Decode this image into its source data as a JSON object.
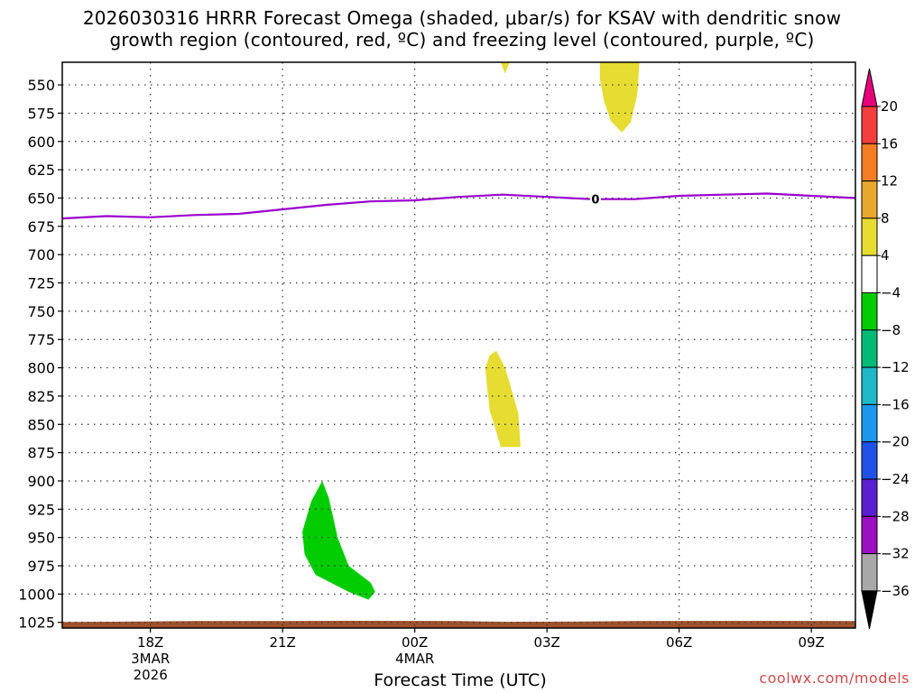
{
  "title": {
    "line1": "2026030316 HRRR Forecast Omega (shaded, μbar/s) for KSAV with dendritic snow",
    "line2": "growth region (contoured, red, ºC) and freezing level (contoured, purple, ºC)"
  },
  "watermark": "coolwx.com/models",
  "chart_data": {
    "type": "contour",
    "station": "KSAV",
    "model": "HRRR",
    "init": "2026030316",
    "xlabel": "Forecast Time (UTC)",
    "ylabel": "",
    "x_range_hours": [
      0,
      18
    ],
    "y_range_mb": [
      1030,
      530
    ],
    "y_reversed": true,
    "grid": true,
    "x_ticks": [
      {
        "hour": 2,
        "label": "18Z",
        "sub1": "3MAR",
        "sub2": "2026"
      },
      {
        "hour": 5,
        "label": "21Z",
        "sub1": "",
        "sub2": ""
      },
      {
        "hour": 8,
        "label": "00Z",
        "sub1": "4MAR",
        "sub2": ""
      },
      {
        "hour": 11,
        "label": "03Z",
        "sub1": "",
        "sub2": ""
      },
      {
        "hour": 14,
        "label": "06Z",
        "sub1": "",
        "sub2": ""
      },
      {
        "hour": 17,
        "label": "09Z",
        "sub1": "",
        "sub2": ""
      }
    ],
    "y_ticks": [
      550,
      575,
      600,
      625,
      650,
      675,
      700,
      725,
      750,
      775,
      800,
      825,
      850,
      875,
      900,
      925,
      950,
      975,
      1000,
      1025
    ],
    "freezing_level": {
      "label": "0",
      "label_hour": 12.1,
      "points": [
        [
          0,
          668
        ],
        [
          1,
          666
        ],
        [
          2,
          667
        ],
        [
          3,
          665
        ],
        [
          4,
          664
        ],
        [
          5,
          660
        ],
        [
          6,
          656
        ],
        [
          7,
          653
        ],
        [
          8,
          652
        ],
        [
          9,
          649
        ],
        [
          10,
          647
        ],
        [
          11,
          649
        ],
        [
          12,
          651
        ],
        [
          13,
          651
        ],
        [
          14,
          648
        ],
        [
          15,
          647
        ],
        [
          16,
          646
        ],
        [
          17,
          648
        ],
        [
          18,
          650
        ]
      ]
    },
    "omega_regions": [
      {
        "name": "ascent-upper-a",
        "color": "#e6dc32",
        "range": "4 to 8",
        "points": [
          [
            9.95,
            530
          ],
          [
            10.05,
            540
          ],
          [
            10.15,
            530
          ]
        ]
      },
      {
        "name": "ascent-upper-b",
        "color": "#e6dc32",
        "range": "4 to 8",
        "points": [
          [
            12.2,
            530
          ],
          [
            12.2,
            545
          ],
          [
            12.3,
            565
          ],
          [
            12.45,
            582
          ],
          [
            12.7,
            592
          ],
          [
            12.9,
            583
          ],
          [
            13.05,
            558
          ],
          [
            13.1,
            530
          ]
        ]
      },
      {
        "name": "ascent-mid",
        "color": "#e6dc32",
        "range": "4 to 8",
        "points": [
          [
            9.6,
            800
          ],
          [
            9.7,
            789
          ],
          [
            9.85,
            785
          ],
          [
            10.05,
            800
          ],
          [
            10.35,
            840
          ],
          [
            10.4,
            870
          ],
          [
            9.95,
            870
          ],
          [
            9.8,
            850
          ],
          [
            9.7,
            838
          ],
          [
            9.65,
            820
          ]
        ]
      },
      {
        "name": "descent-low",
        "color": "#00cc00",
        "range": "-8 to -4",
        "points": [
          [
            5.45,
            945
          ],
          [
            5.65,
            918
          ],
          [
            5.9,
            900
          ],
          [
            6.05,
            915
          ],
          [
            6.25,
            950
          ],
          [
            6.5,
            975
          ],
          [
            7,
            990
          ],
          [
            7.1,
            998
          ],
          [
            6.95,
            1005
          ],
          [
            6.5,
            998
          ],
          [
            5.75,
            983
          ],
          [
            5.5,
            965
          ]
        ]
      }
    ],
    "terrain": {
      "color": "#a0522d",
      "surface_points": [
        [
          0,
          1024.6
        ],
        [
          1.5,
          1024.3
        ],
        [
          3,
          1023.8
        ],
        [
          5,
          1023.8
        ],
        [
          7,
          1023.6
        ],
        [
          9,
          1023.8
        ],
        [
          10,
          1024.5
        ],
        [
          11.5,
          1024.3
        ],
        [
          13,
          1023.8
        ],
        [
          16,
          1023.7
        ],
        [
          18,
          1023.8
        ]
      ]
    },
    "colorbar": {
      "labels": [
        "20",
        "16",
        "12",
        "8",
        "4",
        "−4",
        "−8",
        "−12",
        "−16",
        "−20",
        "−24",
        "−28",
        "−32",
        "−36"
      ],
      "colors": [
        "#e8007a",
        "#f43d3d",
        "#f47d23",
        "#e8a82e",
        "#e6dc32",
        "#ffffff",
        "#00cc00",
        "#00bb77",
        "#1eb8c8",
        "#1c96ef",
        "#2152e8",
        "#5a1fd0",
        "#9b10c0",
        "#a8a8a8",
        "#000000"
      ]
    }
  }
}
